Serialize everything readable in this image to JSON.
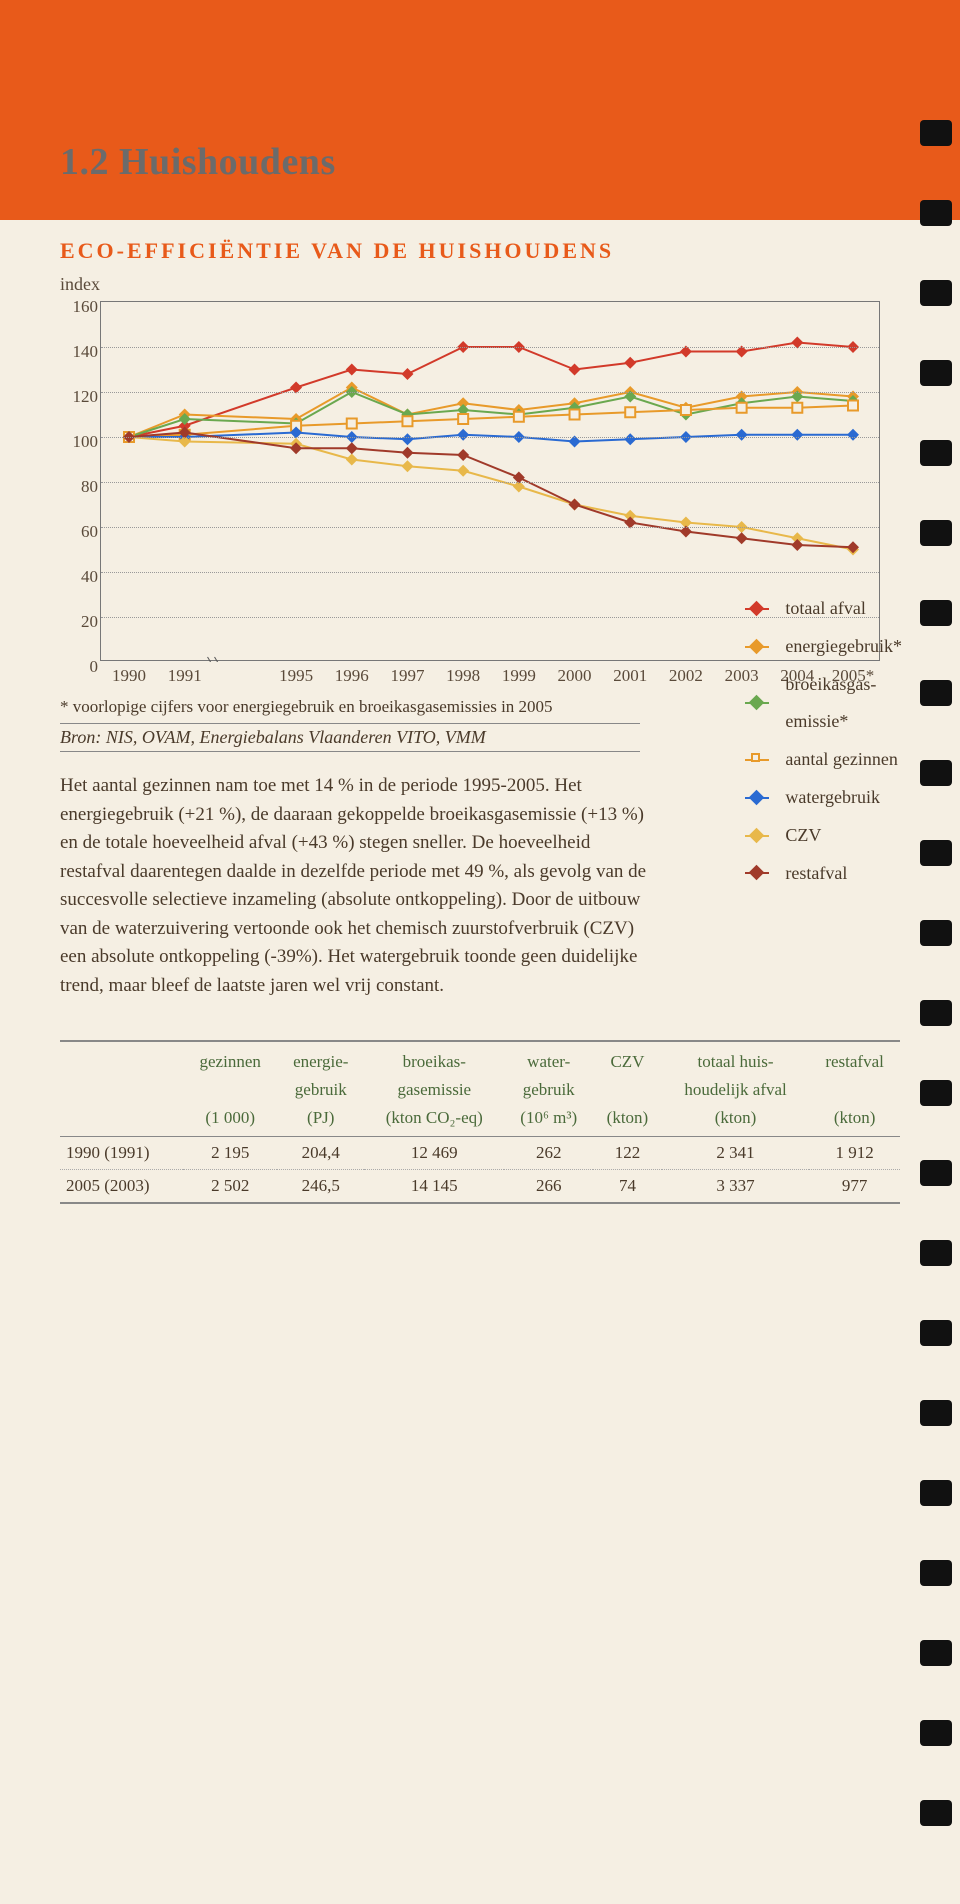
{
  "header": {
    "section_number": "1.2",
    "section_title": "Huishoudens",
    "subtitle": "ECO-EFFICIËNTIE VAN DE HUISHOUDENS"
  },
  "chart": {
    "type": "line",
    "y_axis_label": "index",
    "ylim": [
      0,
      160
    ],
    "ytick_step": 20,
    "yticks": [
      0,
      20,
      40,
      60,
      80,
      100,
      120,
      140,
      160
    ],
    "xticks": [
      "1990",
      "1991",
      "1995",
      "1996",
      "1997",
      "1998",
      "1999",
      "2000",
      "2001",
      "2002",
      "2003",
      "2004",
      "2005*"
    ],
    "xgap_after_index": 1,
    "background_color": "#f5efe3",
    "grid_color": "#999999",
    "series": [
      {
        "name": "totaal afval",
        "color": "#d23a2a",
        "marker": "diamond",
        "values": [
          100,
          105,
          122,
          130,
          128,
          140,
          140,
          130,
          133,
          138,
          138,
          142,
          140
        ]
      },
      {
        "name": "energiegebruik*",
        "color": "#e89a2a",
        "marker": "diamond",
        "values": [
          100,
          110,
          108,
          122,
          110,
          115,
          112,
          115,
          120,
          113,
          118,
          120,
          118
        ]
      },
      {
        "name": "broeikasgasemissie*",
        "color": "#6aa84f",
        "marker": "diamond",
        "values": [
          100,
          108,
          106,
          120,
          110,
          112,
          110,
          113,
          118,
          110,
          115,
          118,
          116
        ]
      },
      {
        "name": "aantal gezinnen",
        "color": "#e89a2a",
        "marker": "square",
        "values": [
          100,
          101,
          105,
          106,
          107,
          108,
          109,
          110,
          111,
          112,
          113,
          113,
          114
        ]
      },
      {
        "name": "watergebruik",
        "color": "#2a6ad2",
        "marker": "diamond",
        "values": [
          100,
          100,
          102,
          100,
          99,
          101,
          100,
          98,
          99,
          100,
          101,
          101,
          101
        ]
      },
      {
        "name": "CZV",
        "color": "#e8b84a",
        "marker": "diamond",
        "values": [
          100,
          98,
          97,
          90,
          87,
          85,
          78,
          70,
          65,
          62,
          60,
          55,
          50
        ]
      },
      {
        "name": "restafval",
        "color": "#a03a2a",
        "marker": "diamond",
        "values": [
          100,
          102,
          95,
          95,
          93,
          92,
          82,
          70,
          62,
          58,
          55,
          52,
          51
        ]
      }
    ]
  },
  "footnote": "* voorlopige cijfers voor energiegebruik en broeikasgasemissies in 2005",
  "source_label": "Bron:",
  "source": "NIS, OVAM, Energiebalans Vlaanderen VITO, VMM",
  "body": "Het aantal gezinnen nam toe met 14 % in de periode 1995-2005. Het energiegebruik (+21 %), de daaraan gekoppelde broeikasgasemissie (+13 %) en de totale hoeveelheid afval (+43 %) stegen sneller. De hoeveelheid restafval daarentegen daalde in dezelfde periode met 49 %, als gevolg van de succesvolle selectieve inzameling (absolute ontkoppeling). Door de uitbouw van de waterzuivering vertoonde ook het chemisch zuurstofverbruik (CZV) een absolute ontkoppeling (-39%). Het watergebruik toonde geen duidelijke trend, maar bleef de laatste jaren wel vrij constant.",
  "table": {
    "columns_l1": [
      "",
      "gezinnen",
      "energie-",
      "broeikas-",
      "water-",
      "CZV",
      "totaal huis-",
      "restafval"
    ],
    "columns_l2": [
      "",
      "",
      "gebruik",
      "gasemissie",
      "gebruik",
      "",
      "houdelijk afval",
      ""
    ],
    "columns_l3": [
      "",
      "(1 000)",
      "(PJ)",
      "(kton CO₂-eq)",
      "(10⁶ m³)",
      "(kton)",
      "(kton)",
      "(kton)"
    ],
    "rows": [
      [
        "1990 (1991)",
        "2 195",
        "204,4",
        "12 469",
        "262",
        "122",
        "2 341",
        "1 912"
      ],
      [
        "2005 (2003)",
        "2 502",
        "246,5",
        "14 145",
        "266",
        "74",
        "3 337",
        "977"
      ]
    ]
  },
  "legend_items": [
    {
      "label": "totaal afval",
      "color": "#d23a2a",
      "marker": "diamond"
    },
    {
      "label": "energiegebruik*",
      "color": "#e89a2a",
      "marker": "diamond"
    },
    {
      "label": "broeikasgas-\nemissie*",
      "color": "#6aa84f",
      "marker": "diamond"
    },
    {
      "label": "aantal gezinnen",
      "color": "#e89a2a",
      "marker": "square"
    },
    {
      "label": "watergebruik",
      "color": "#2a6ad2",
      "marker": "diamond"
    },
    {
      "label": "CZV",
      "color": "#e8b84a",
      "marker": "diamond"
    },
    {
      "label": "restafval",
      "color": "#a03a2a",
      "marker": "diamond"
    }
  ]
}
